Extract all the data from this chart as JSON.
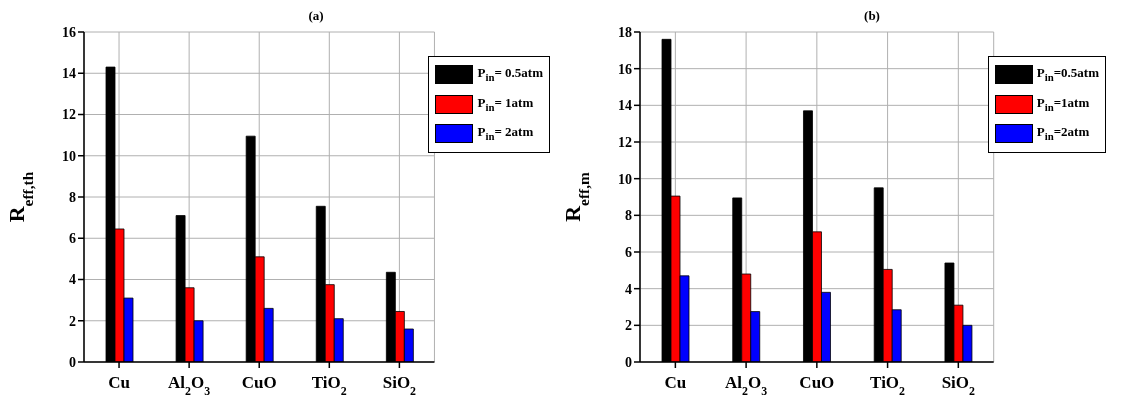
{
  "chart_data": [
    {
      "type": "bar",
      "title": "(a)",
      "ylabel": "R$_{eff,th}$",
      "categories": [
        "Cu",
        "Al$_{2}$O$_{3}$",
        "CuO",
        "TiO$_{2}$",
        "SiO$_{2}$"
      ],
      "series": [
        {
          "name": "P$_{in}$= 0.5atm",
          "color": "#000000",
          "values": [
            14.3,
            7.1,
            10.95,
            7.55,
            4.35
          ]
        },
        {
          "name": "P$_{in}$= 1atm",
          "color": "#ff0000",
          "values": [
            6.45,
            3.6,
            5.1,
            3.75,
            2.45
          ]
        },
        {
          "name": "P$_{in}$= 2atm",
          "color": "#0000ff",
          "values": [
            3.1,
            2.0,
            2.6,
            2.1,
            1.6
          ]
        }
      ],
      "ylim": [
        0,
        16
      ],
      "yticks": [
        0,
        2,
        4,
        6,
        8,
        10,
        12,
        14,
        16
      ],
      "grid": true,
      "legend": "top right"
    },
    {
      "type": "bar",
      "title": "(b)",
      "ylabel": "R$_{eff,m}$",
      "categories": [
        "Cu",
        "Al$_{2}$O$_{3}$",
        "CuO",
        "TiO$_{2}$",
        "SiO$_{2}$"
      ],
      "series": [
        {
          "name": "P$_{in}$=0.5atm",
          "color": "#000000",
          "values": [
            17.6,
            8.95,
            13.7,
            9.5,
            5.4
          ]
        },
        {
          "name": "P$_{in}$=1atm",
          "color": "#ff0000",
          "values": [
            9.05,
            4.8,
            7.1,
            5.05,
            3.1
          ]
        },
        {
          "name": "P$_{in}$=2atm",
          "color": "#0000ff",
          "values": [
            4.7,
            2.75,
            3.8,
            2.85,
            2.0
          ]
        }
      ],
      "ylim": [
        0,
        18
      ],
      "yticks": [
        0,
        2,
        4,
        6,
        8,
        10,
        12,
        14,
        16,
        18
      ],
      "grid": true,
      "legend": "top right"
    }
  ]
}
